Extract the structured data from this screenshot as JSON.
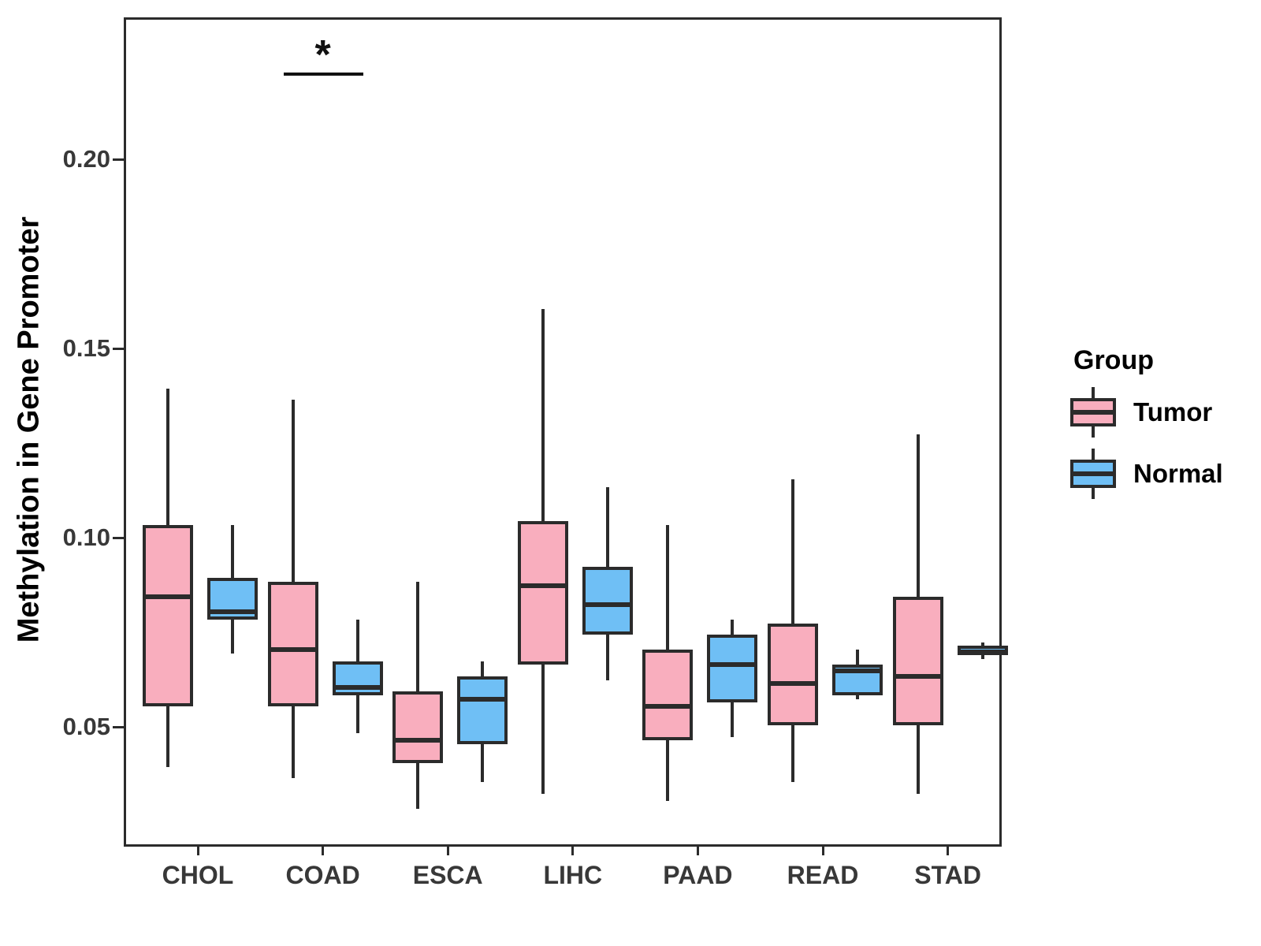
{
  "y_axis": {
    "label": "Methylation in Gene Promoter",
    "ticks": [
      {
        "label": "0.20",
        "value": 0.2
      },
      {
        "label": "0.15",
        "value": 0.15
      },
      {
        "label": "0.10",
        "value": 0.1
      },
      {
        "label": "0.05",
        "value": 0.05
      }
    ],
    "range": [
      0.02,
      0.2375
    ],
    "grid": "off"
  },
  "x_axis": {
    "categories": [
      "CHOL",
      "COAD",
      "ESCA",
      "LIHC",
      "PAAD",
      "READ",
      "STAD"
    ]
  },
  "legend": {
    "title": "Group",
    "position": "right-center",
    "entries": [
      {
        "label": "Tumor",
        "color": "#F9AEBE"
      },
      {
        "label": "Normal",
        "color": "#6FBFF5"
      }
    ]
  },
  "annotation": {
    "text": "*",
    "category": "COAD",
    "bar_y_value": 0.223
  },
  "colors": {
    "tumor_fill": "#F9AEBE",
    "normal_fill": "#6FBFF5",
    "line": "#2B2B2B"
  },
  "chart_data": {
    "type": "boxplot",
    "orientation": "vertical",
    "categories": [
      "CHOL",
      "COAD",
      "ESCA",
      "LIHC",
      "PAAD",
      "READ",
      "STAD"
    ],
    "series": [
      {
        "name": "Tumor",
        "color": "#F9AEBE",
        "values": [
          {
            "low": 0.04,
            "q1": 0.056,
            "median": 0.085,
            "q3": 0.104,
            "high": 0.14
          },
          {
            "low": 0.037,
            "q1": 0.056,
            "median": 0.071,
            "q3": 0.089,
            "high": 0.137
          },
          {
            "low": 0.029,
            "q1": 0.041,
            "median": 0.047,
            "q3": 0.06,
            "high": 0.089
          },
          {
            "low": 0.033,
            "q1": 0.067,
            "median": 0.088,
            "q3": 0.105,
            "high": 0.161
          },
          {
            "low": 0.031,
            "q1": 0.047,
            "median": 0.056,
            "q3": 0.071,
            "high": 0.104
          },
          {
            "low": 0.036,
            "q1": 0.051,
            "median": 0.062,
            "q3": 0.078,
            "high": 0.116
          },
          {
            "low": 0.033,
            "q1": 0.051,
            "median": 0.064,
            "q3": 0.085,
            "high": 0.128
          }
        ]
      },
      {
        "name": "Normal",
        "color": "#6FBFF5",
        "values": [
          {
            "low": 0.07,
            "q1": 0.079,
            "median": 0.081,
            "q3": 0.09,
            "high": 0.104
          },
          {
            "low": 0.049,
            "q1": 0.059,
            "median": 0.061,
            "q3": 0.068,
            "high": 0.079
          },
          {
            "low": 0.036,
            "q1": 0.046,
            "median": 0.058,
            "q3": 0.064,
            "high": 0.068
          },
          {
            "low": 0.063,
            "q1": 0.075,
            "median": 0.083,
            "q3": 0.093,
            "high": 0.114
          },
          {
            "low": 0.048,
            "q1": 0.057,
            "median": 0.067,
            "q3": 0.075,
            "high": 0.079
          },
          {
            "low": 0.058,
            "q1": 0.059,
            "median": 0.0655,
            "q3": 0.067,
            "high": 0.071
          },
          {
            "low": 0.0685,
            "q1": 0.0695,
            "median": 0.0705,
            "q3": 0.072,
            "high": 0.073
          }
        ]
      }
    ]
  }
}
